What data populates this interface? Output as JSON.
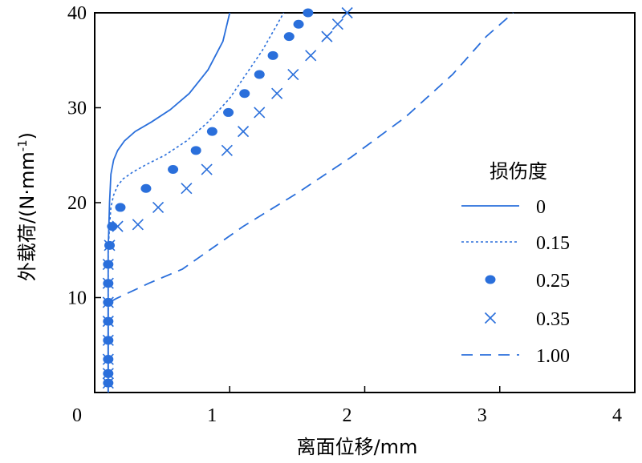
{
  "chart_data": {
    "type": "line",
    "xlabel": "离面位移/mm",
    "ylabel_main": "外载荷/(N·mm",
    "ylabel_sup": "-1",
    "ylabel_close": ")",
    "xlim": [
      0,
      4
    ],
    "ylim": [
      0,
      40
    ],
    "xticks": [
      0,
      1,
      2,
      3,
      4
    ],
    "yticks": [
      10,
      20,
      30,
      40
    ],
    "xtick_labels": [
      "0",
      "1",
      "2",
      "3",
      "4"
    ],
    "ytick_labels": [
      "10",
      "20",
      "30",
      "40"
    ],
    "grid": false,
    "legend": {
      "title": "损伤度",
      "placement": "right"
    },
    "color": "#2a6fdb",
    "series": [
      {
        "name": "0",
        "style": "solid",
        "x": [
          0.1,
          0.1,
          0.11,
          0.12,
          0.14,
          0.17,
          0.22,
          0.3,
          0.42,
          0.56,
          0.7,
          0.84,
          0.95,
          1.0
        ],
        "y": [
          0,
          15,
          20,
          23,
          24.5,
          25.5,
          26.5,
          27.5,
          28.5,
          29.8,
          31.5,
          34,
          37,
          40
        ]
      },
      {
        "name": "0.15",
        "style": "dotted",
        "x": [
          0.1,
          0.1,
          0.11,
          0.12,
          0.14,
          0.17,
          0.21,
          0.28,
          0.38,
          0.52,
          0.68,
          0.84,
          1.0,
          1.12,
          1.24,
          1.34,
          1.4
        ],
        "y": [
          0,
          15,
          17.5,
          19.5,
          20.8,
          21.8,
          22.5,
          23.2,
          24,
          25,
          26.5,
          28.5,
          31,
          33.5,
          36,
          38.5,
          40
        ]
      },
      {
        "name": "0.25",
        "style": "circle",
        "x": [
          0.1,
          0.1,
          0.1,
          0.1,
          0.1,
          0.1,
          0.1,
          0.1,
          0.11,
          0.13,
          0.19,
          0.38,
          0.58,
          0.75,
          0.87,
          0.99,
          1.11,
          1.22,
          1.32,
          1.44,
          1.51,
          1.58
        ],
        "y": [
          1,
          2,
          3.5,
          5.5,
          7.5,
          9.5,
          11.5,
          13.5,
          15.5,
          17.5,
          19.5,
          21.5,
          23.5,
          25.5,
          27.5,
          29.5,
          31.5,
          33.5,
          35.5,
          37.5,
          38.8,
          40
        ]
      },
      {
        "name": "0.35",
        "style": "cross",
        "x": [
          0.1,
          0.1,
          0.1,
          0.1,
          0.1,
          0.1,
          0.1,
          0.1,
          0.11,
          0.17,
          0.32,
          0.47,
          0.68,
          0.83,
          0.98,
          1.1,
          1.22,
          1.35,
          1.47,
          1.6,
          1.72,
          1.8,
          1.87
        ],
        "y": [
          1,
          2,
          3.5,
          5.5,
          7.5,
          9.5,
          11.5,
          13.5,
          15.5,
          17.5,
          17.7,
          19.5,
          21.5,
          23.5,
          25.5,
          27.5,
          29.5,
          31.5,
          33.5,
          35.5,
          37.5,
          38.8,
          40
        ]
      },
      {
        "name": "1.00",
        "style": "dashed",
        "x": [
          0.1,
          0.1,
          0.11,
          0.16,
          0.4,
          0.65,
          0.8,
          1.1,
          1.5,
          1.9,
          2.3,
          2.65,
          2.9,
          3.1
        ],
        "y": [
          0,
          9,
          9.5,
          9.9,
          11.5,
          13,
          14.5,
          17.5,
          21,
          24.8,
          29,
          33.5,
          37.5,
          40
        ]
      }
    ]
  }
}
